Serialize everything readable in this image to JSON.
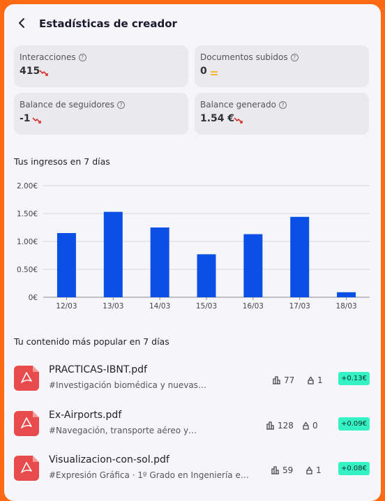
{
  "header": {
    "title": "Estadísticas de creador"
  },
  "stats": [
    {
      "label": "Interacciones",
      "value": "415",
      "trend": "down"
    },
    {
      "label": "Documentos subidos",
      "value": "0",
      "trend": "equal"
    },
    {
      "label": "Balance de seguidores",
      "value": "-1",
      "trend": "down"
    },
    {
      "label": "Balance generado",
      "value": "1.54 €",
      "trend": "down"
    }
  ],
  "earnings": {
    "title": "Tus ingresos en 7 días"
  },
  "chart_data": {
    "type": "bar",
    "categories": [
      "12/03",
      "13/03",
      "14/03",
      "15/03",
      "16/03",
      "17/03",
      "18/03"
    ],
    "values": [
      1.15,
      1.53,
      1.25,
      0.77,
      1.13,
      1.44,
      0.09
    ],
    "ylim": [
      0,
      2
    ],
    "y_ticks": [
      "0€",
      "0.50€",
      "1.00€",
      "1.50€",
      "2.00€"
    ],
    "bar_color": "#0a4fe6",
    "grid": true
  },
  "popular": {
    "title": "Tu contenido más popular en 7 días",
    "items": [
      {
        "name": "PRACTICAS-IBNT.pdf",
        "desc": "#Investigación biomédica y nuevas…",
        "views": "77",
        "downloads": "1",
        "earned": "+0.13€"
      },
      {
        "name": "Ex-Airports.pdf",
        "desc": "#Navegación, transporte aéreo y…",
        "views": "128",
        "downloads": "0",
        "earned": "+0.09€"
      },
      {
        "name": "Visualizacion-con-sol.pdf",
        "desc": "#Expresión Gráfica · 1º Grado en Ingeniería e…",
        "views": "59",
        "downloads": "1",
        "earned": "+0.08€"
      }
    ]
  },
  "colors": {
    "accent": "#ff6a13",
    "bar": "#0a4fe6",
    "down": "#d9322b",
    "equal": "#f2b21b",
    "earn_badge": "#34f2c4"
  }
}
